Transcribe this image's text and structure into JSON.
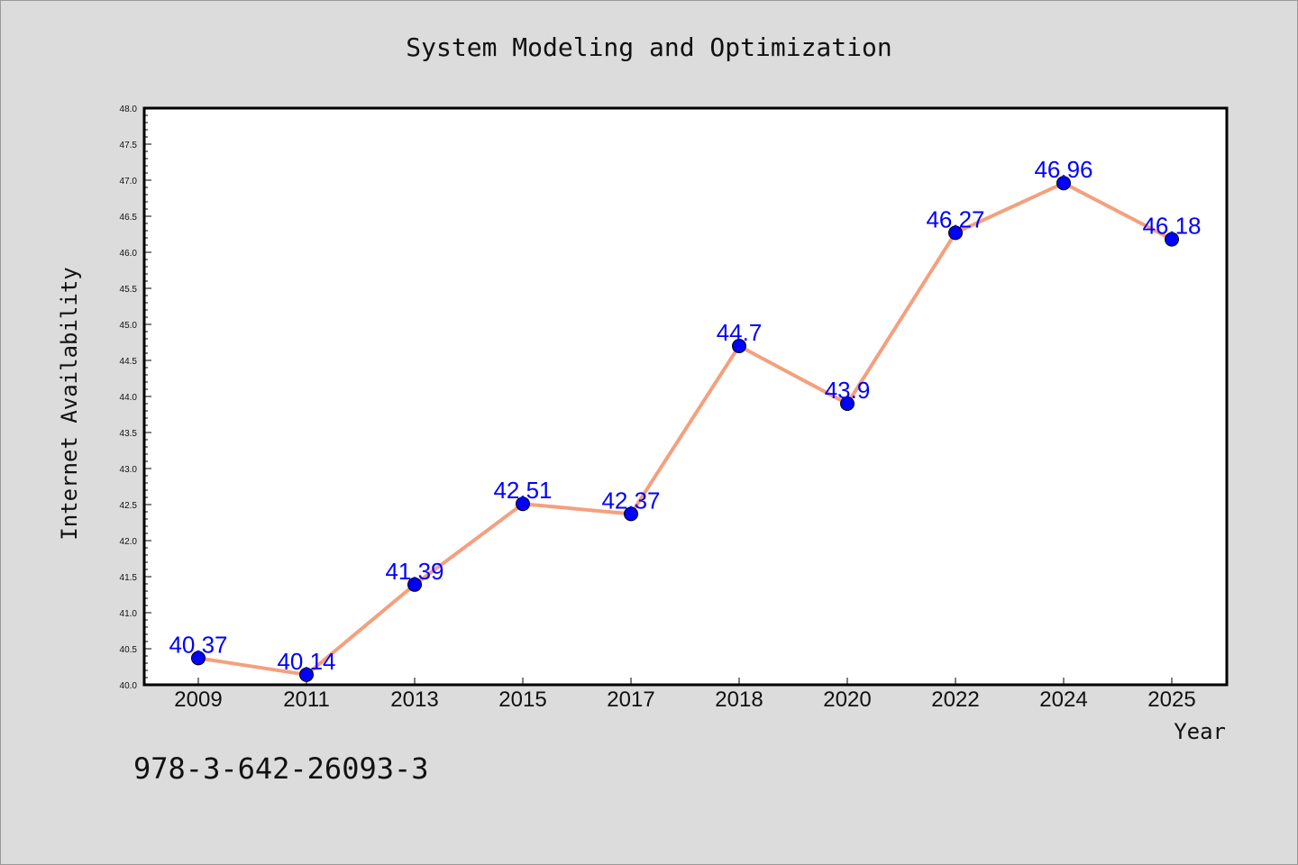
{
  "chart_data": {
    "type": "line",
    "title": "System Modeling and Optimization",
    "xlabel": "Year",
    "ylabel": "Internet Availability",
    "categories": [
      "2009",
      "2011",
      "2013",
      "2015",
      "2017",
      "2018",
      "2020",
      "2022",
      "2024",
      "2025"
    ],
    "values": [
      40.37,
      40.14,
      41.39,
      42.51,
      42.37,
      44.7,
      43.9,
      46.27,
      46.96,
      46.18
    ],
    "data_labels": [
      "40.37",
      "40.14",
      "41.39",
      "42.51",
      "42.37",
      "44.7",
      "43.9",
      "46.27",
      "46.96",
      "46.18"
    ],
    "ylim": [
      40.0,
      48.0
    ],
    "yticks": [
      "40.0",
      "40.5",
      "41.0",
      "41.5",
      "42.0",
      "42.5",
      "43.0",
      "43.5",
      "44.0",
      "44.5",
      "45.0",
      "45.5",
      "46.0",
      "46.5",
      "47.0",
      "47.5",
      "48.0"
    ],
    "grid": false,
    "legend": "none",
    "line_color": "#f4a07e",
    "marker_color": "#0000ff",
    "label_color": "#0000ff",
    "background_color": "#dcdcdc",
    "plot_background": "#ffffff"
  },
  "footer": {
    "isbn": "978-3-642-26093-3"
  }
}
